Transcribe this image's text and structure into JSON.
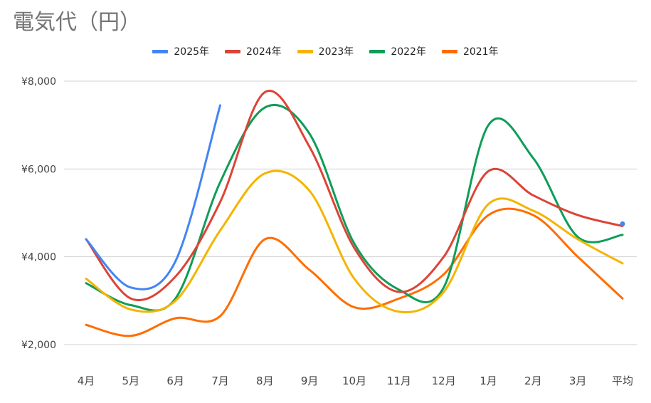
{
  "chart_data": {
    "type": "line",
    "title": "電気代（円）",
    "categories": [
      "4月",
      "5月",
      "6月",
      "7月",
      "8月",
      "9月",
      "10月",
      "11月",
      "12月",
      "1月",
      "2月",
      "3月",
      "平均"
    ],
    "ylim": [
      2000,
      8000
    ],
    "yticks": [
      2000,
      4000,
      6000,
      8000
    ],
    "ytick_labels": [
      "¥2,000",
      "¥4,000",
      "¥6,000",
      "¥8,000"
    ],
    "grid": true,
    "legend_position": "top",
    "series": [
      {
        "name": "2025年",
        "color": "#4285F4",
        "values": [
          4400,
          3300,
          3900,
          7450,
          null,
          null,
          null,
          null,
          null,
          null,
          null,
          null,
          4750
        ]
      },
      {
        "name": "2024年",
        "color": "#DB4437",
        "values": [
          4400,
          3050,
          3550,
          5250,
          7750,
          6500,
          4200,
          3200,
          4000,
          5950,
          5400,
          4950,
          4700
        ]
      },
      {
        "name": "2023年",
        "color": "#F4B400",
        "values": [
          3500,
          2800,
          3000,
          4600,
          5900,
          5500,
          3500,
          2750,
          3200,
          5200,
          5050,
          4400,
          3850
        ]
      },
      {
        "name": "2022年",
        "color": "#0F9D58",
        "values": [
          3400,
          2900,
          3050,
          5700,
          7400,
          6800,
          4300,
          3250,
          3300,
          7000,
          6250,
          4450,
          4500
        ]
      },
      {
        "name": "2021年",
        "color": "#FF6D01",
        "values": [
          2450,
          2200,
          2600,
          2650,
          4400,
          3700,
          2850,
          3050,
          3600,
          4950,
          4950,
          4000,
          3050
        ]
      }
    ]
  }
}
